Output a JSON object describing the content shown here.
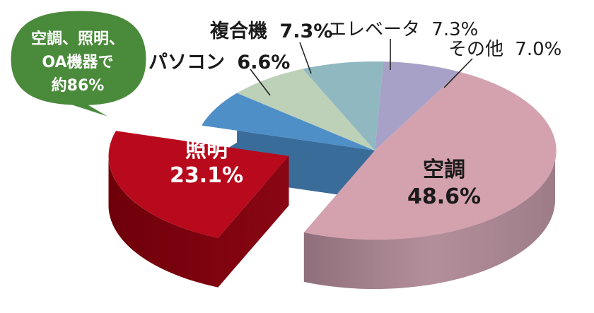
{
  "callout": {
    "line1": "空調、照明、",
    "line2": "OA機器で",
    "line3": "約86%"
  },
  "chart_data": {
    "type": "pie",
    "style": "3d-exploded",
    "slices": [
      {
        "key": "aircon",
        "name": "空調",
        "value_label": "48.6%",
        "value": 48.6,
        "color": "#D4A2AE"
      },
      {
        "key": "lighting",
        "name": "照明",
        "value_label": "23.1%",
        "value": 23.1,
        "color": "#B80A1C",
        "exploded": true
      },
      {
        "key": "pc",
        "name": "パソコン",
        "value_label": "6.6%",
        "value": 6.6,
        "color": "#4E8FC8"
      },
      {
        "key": "copier",
        "name": "複合機",
        "value_label": "7.3%",
        "value": 7.3,
        "color": "#BDD0B8"
      },
      {
        "key": "elevator",
        "name": "エレベータ",
        "value_label": "7.3%",
        "value": 7.3,
        "color": "#8FB8C0"
      },
      {
        "key": "other",
        "name": "その他",
        "value_label": "7.0%",
        "value": 7.0,
        "color": "#A7A1C7"
      }
    ]
  }
}
